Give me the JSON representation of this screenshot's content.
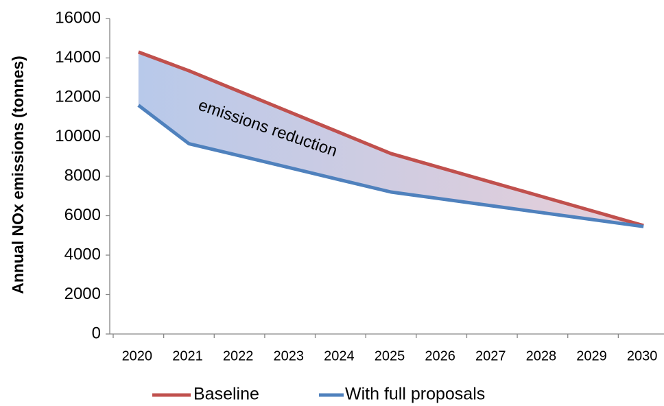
{
  "chart_data": {
    "type": "line",
    "y_axis_label": "Annual NOx emissions (tonnes)",
    "annotation": "emissions reduction",
    "categories": [
      "2020",
      "2021",
      "2022",
      "2023",
      "2024",
      "2025",
      "2026",
      "2027",
      "2028",
      "2029",
      "2030"
    ],
    "series": [
      {
        "name": "Baseline",
        "color": "#c0504d",
        "values": [
          14300,
          13350,
          12300,
          11250,
          10200,
          9150,
          8420,
          7690,
          6960,
          6230,
          5500
        ]
      },
      {
        "name": "With full proposals",
        "color": "#4f81bd",
        "values": [
          11600,
          9650,
          9040,
          8430,
          7810,
          7200,
          6850,
          6500,
          6150,
          5800,
          5450
        ]
      }
    ],
    "ylim": [
      0,
      16000
    ],
    "yticks": [
      0,
      2000,
      4000,
      6000,
      8000,
      10000,
      12000,
      14000,
      16000
    ],
    "legend": "bottom"
  }
}
